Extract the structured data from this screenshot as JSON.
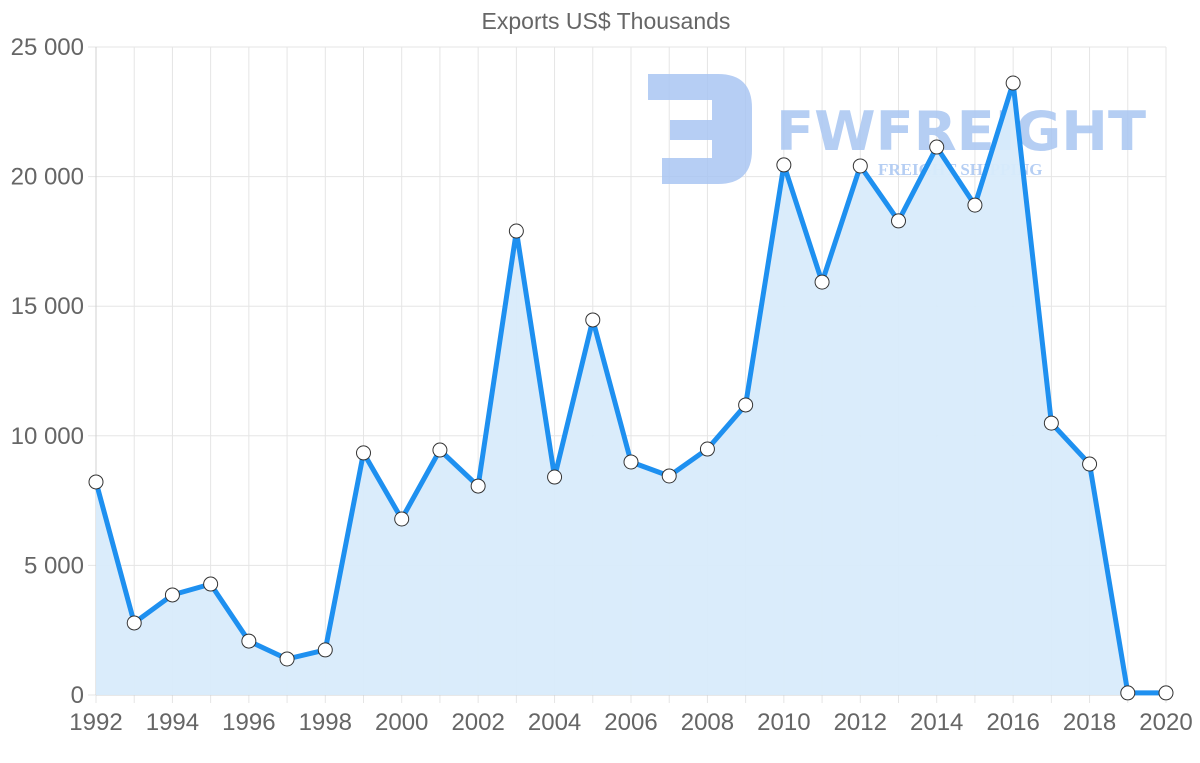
{
  "chart_data": {
    "type": "area",
    "title": "Exports US$ Thousands",
    "xlabel": "",
    "ylabel": "",
    "x": [
      1992,
      1993,
      1994,
      1995,
      1996,
      1997,
      1998,
      1999,
      2000,
      2001,
      2002,
      2003,
      2004,
      2005,
      2006,
      2007,
      2008,
      2009,
      2010,
      2011,
      2012,
      2013,
      2014,
      2015,
      2016,
      2017,
      2018,
      2019,
      2020
    ],
    "series": [
      {
        "name": "Exports US$ Thousands",
        "values": [
          8220,
          2780,
          3860,
          4280,
          2080,
          1390,
          1740,
          9340,
          6790,
          9450,
          8060,
          17900,
          8410,
          14470,
          8990,
          8450,
          9490,
          11190,
          20450,
          15930,
          20410,
          18290,
          21140,
          18900,
          23610,
          10490,
          8910,
          80,
          80
        ]
      }
    ],
    "ylim": [
      0,
      25000
    ],
    "y_ticks": [
      "0",
      "5 000",
      "10 000",
      "15 000",
      "20 000",
      "25 000"
    ],
    "x_ticks": [
      "1992",
      "1994",
      "1996",
      "1998",
      "2000",
      "2002",
      "2004",
      "2006",
      "2008",
      "2010",
      "2012",
      "2014",
      "2016",
      "2018",
      "2020"
    ],
    "grid": true,
    "legend": "none",
    "colors": {
      "line": "#1e90f0",
      "fill": "#d8ebfb",
      "point_fill": "#ffffff",
      "point_stroke": "#333333",
      "grid": "#e5e5e5"
    }
  },
  "watermark": {
    "brand": "FWFREIGHT",
    "tagline": "FREIGHT SHIPPING",
    "color": "#a9c6f2"
  }
}
